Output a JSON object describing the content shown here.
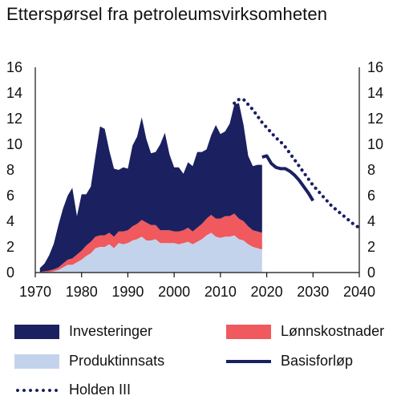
{
  "title": "Etterspørsel fra petroleumsvirksomheten",
  "legend": {
    "items": [
      {
        "label": "Investeringer",
        "color": "#1b2060",
        "kind": "area"
      },
      {
        "label": "Lønnskostnader",
        "color": "#f0595d",
        "kind": "area"
      },
      {
        "label": "Produktinnsats",
        "color": "#c4d3ec",
        "kind": "area"
      },
      {
        "label": "Basisforløp",
        "color": "#1b2060",
        "kind": "line"
      },
      {
        "label": "Holden III",
        "color": "#1b2060",
        "kind": "dotted"
      }
    ]
  },
  "chart_data": {
    "type": "area",
    "title": "Etterspørsel fra petroleumsvirksomheten",
    "xlim": [
      1970,
      2040
    ],
    "ylim": [
      0,
      16
    ],
    "x_ticks": [
      1970,
      1980,
      1990,
      2000,
      2010,
      2020,
      2030,
      2040
    ],
    "y_ticks": [
      0,
      2,
      4,
      6,
      8,
      10,
      12,
      14,
      16
    ],
    "grid": false,
    "dual_y_axis": true,
    "legend_position": "bottom",
    "stacked_x": [
      1971,
      1972,
      1973,
      1974,
      1975,
      1976,
      1977,
      1978,
      1979,
      1980,
      1981,
      1982,
      1983,
      1984,
      1985,
      1986,
      1987,
      1988,
      1989,
      1990,
      1991,
      1992,
      1993,
      1994,
      1995,
      1996,
      1997,
      1998,
      1999,
      2000,
      2001,
      2002,
      2003,
      2004,
      2005,
      2006,
      2007,
      2008,
      2009,
      2010,
      2011,
      2012,
      2013,
      2014,
      2015,
      2016,
      2017,
      2018,
      2019
    ],
    "series": [
      {
        "name": "Produktinnsats",
        "values": [
          0.0,
          0.0,
          0.05,
          0.1,
          0.2,
          0.4,
          0.6,
          0.6,
          0.8,
          1.0,
          1.3,
          1.5,
          1.9,
          2.0,
          2.0,
          2.2,
          1.9,
          2.3,
          2.2,
          2.3,
          2.5,
          2.6,
          2.8,
          2.5,
          2.5,
          2.6,
          2.3,
          2.3,
          2.3,
          2.3,
          2.2,
          2.3,
          2.4,
          2.2,
          2.4,
          2.6,
          2.9,
          3.1,
          2.8,
          2.7,
          2.8,
          2.8,
          2.9,
          2.6,
          2.5,
          2.2,
          2.0,
          1.9,
          1.8
        ]
      },
      {
        "name": "Lønnskostnader",
        "values": [
          0.05,
          0.1,
          0.1,
          0.15,
          0.2,
          0.3,
          0.4,
          0.5,
          0.6,
          0.7,
          0.8,
          0.9,
          0.9,
          0.9,
          0.9,
          0.9,
          0.9,
          0.9,
          1.0,
          1.0,
          1.1,
          1.2,
          1.3,
          1.4,
          1.2,
          1.1,
          1.0,
          1.0,
          1.0,
          0.9,
          1.0,
          1.0,
          1.1,
          1.0,
          1.1,
          1.2,
          1.3,
          1.4,
          1.4,
          1.5,
          1.6,
          1.6,
          1.7,
          1.6,
          1.5,
          1.4,
          1.3,
          1.3,
          1.3
        ]
      },
      {
        "name": "Investeringer",
        "values": [
          0.3,
          0.6,
          1.2,
          2.0,
          3.3,
          4.3,
          5.0,
          5.5,
          3.0,
          4.4,
          4.0,
          4.3,
          6.3,
          8.5,
          8.3,
          6.4,
          5.3,
          4.8,
          5.0,
          4.8,
          6.3,
          6.8,
          8.0,
          6.5,
          5.6,
          5.7,
          6.7,
          7.6,
          5.9,
          5.0,
          5.0,
          4.4,
          5.1,
          5.1,
          5.9,
          5.6,
          5.4,
          6.2,
          7.3,
          6.6,
          6.6,
          7.2,
          8.5,
          9.0,
          7.5,
          5.5,
          5.0,
          5.2,
          5.3
        ]
      },
      {
        "name": "Basisforløp",
        "x": [
          2019,
          2020,
          2021,
          2022,
          2023,
          2024,
          2025,
          2026,
          2027,
          2028,
          2029,
          2030
        ],
        "values": [
          9.0,
          9.1,
          8.5,
          8.2,
          8.1,
          8.1,
          7.9,
          7.6,
          7.2,
          6.7,
          6.2,
          5.6
        ]
      },
      {
        "name": "Holden III",
        "x": [
          2013,
          2014,
          2015,
          2016,
          2017,
          2018,
          2019,
          2020,
          2021,
          2022,
          2023,
          2024,
          2025,
          2026,
          2027,
          2028,
          2029,
          2030,
          2031,
          2032,
          2033,
          2034,
          2035,
          2036,
          2037,
          2038,
          2039,
          2040
        ],
        "values": [
          13.2,
          13.5,
          13.5,
          13.1,
          12.7,
          12.2,
          11.7,
          11.3,
          10.9,
          10.5,
          10.2,
          9.8,
          9.3,
          8.8,
          8.3,
          7.8,
          7.3,
          6.8,
          6.4,
          6.0,
          5.6,
          5.2,
          4.9,
          4.6,
          4.3,
          4.0,
          3.7,
          3.5
        ]
      }
    ]
  }
}
